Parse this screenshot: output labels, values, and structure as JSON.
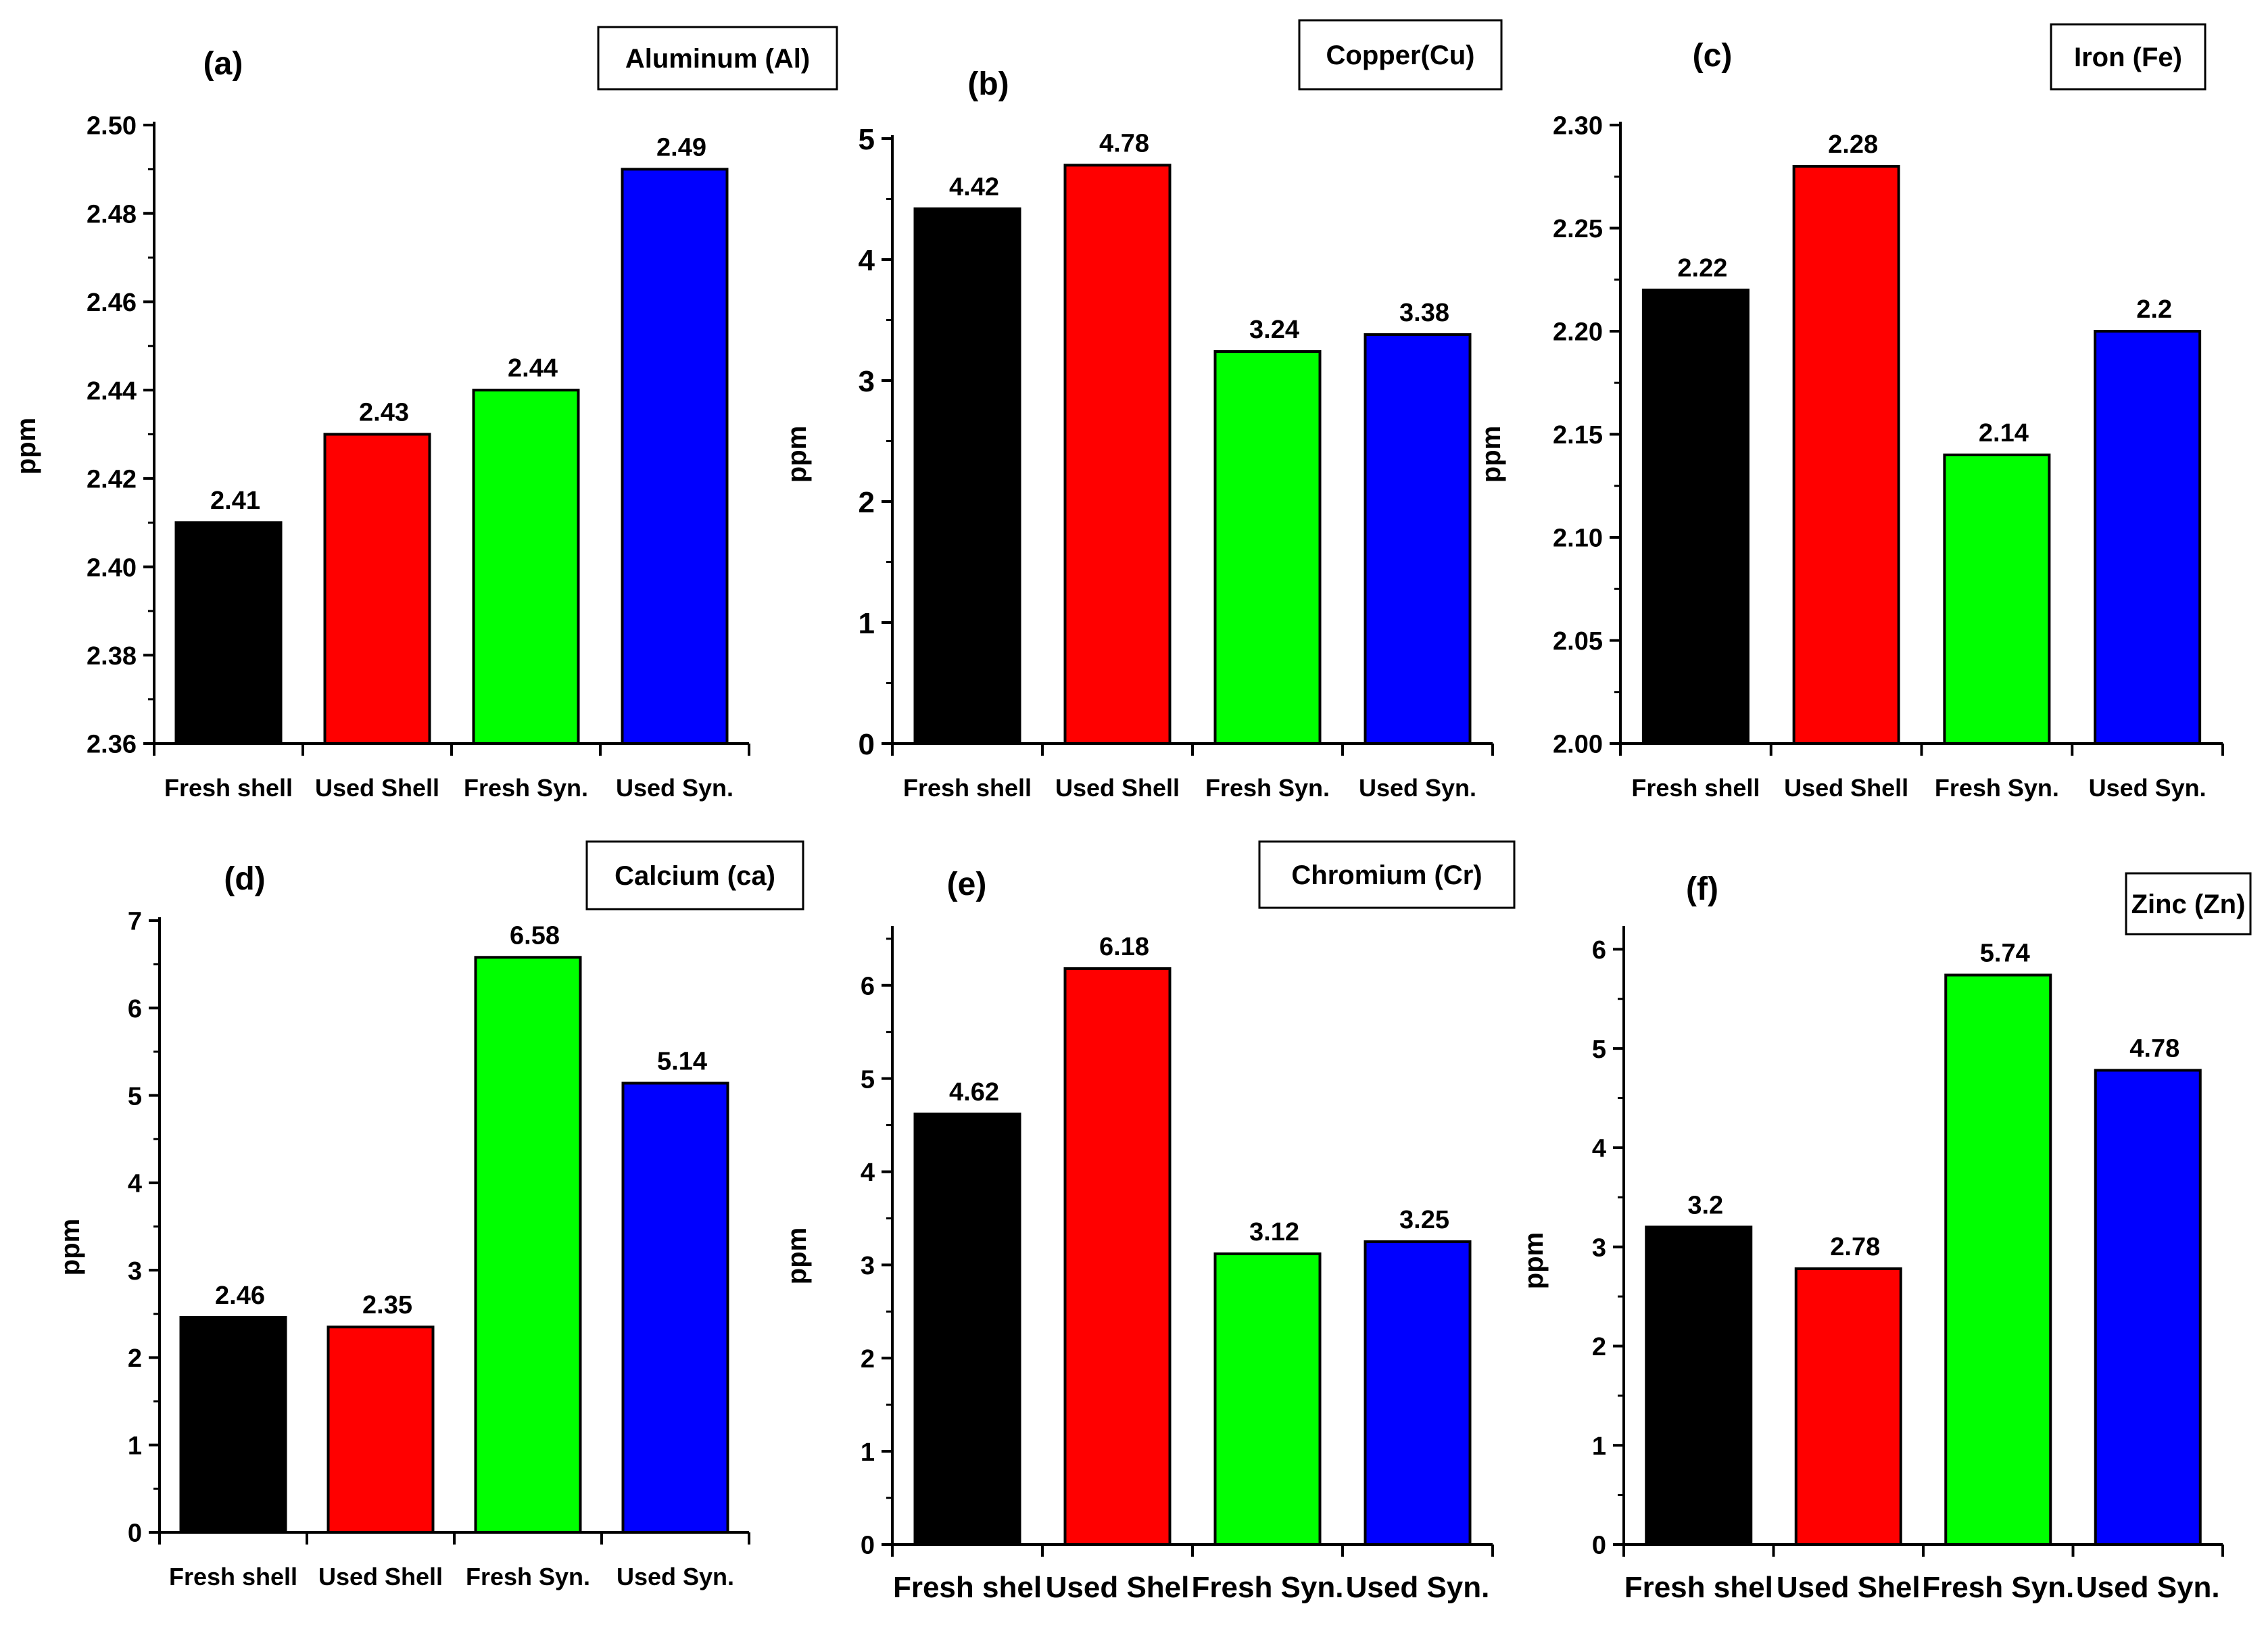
{
  "chart_data": [
    {
      "type": "bar",
      "panel": "(a)",
      "title": "Aluminum (Al)",
      "categories": [
        "Fresh shell",
        "Used Shell",
        "Fresh Syn.",
        "Used Syn."
      ],
      "values": [
        2.41,
        2.43,
        2.44,
        2.49
      ],
      "value_labels": [
        "2.41",
        "2.43",
        "2.44",
        "2.49"
      ],
      "colors": [
        "#000000",
        "#ff0000",
        "#00ff00",
        "#0000ff"
      ],
      "ylabel": "ppm",
      "xlabel": "",
      "ylim": [
        2.36,
        2.5
      ],
      "yticks": [
        2.36,
        2.38,
        2.4,
        2.42,
        2.44,
        2.46,
        2.48,
        2.5
      ],
      "ytick_labels": [
        "2.36",
        "2.38",
        "2.40",
        "2.42",
        "2.44",
        "2.46",
        "2.48",
        "2.50"
      ]
    },
    {
      "type": "bar",
      "panel": "(b)",
      "title": "Copper(Cu)",
      "categories": [
        "Fresh shell",
        "Used Shell",
        "Fresh Syn.",
        "Used Syn."
      ],
      "values": [
        4.42,
        4.78,
        3.24,
        3.38
      ],
      "value_labels": [
        "4.42",
        "4.78",
        "3.24",
        "3.38"
      ],
      "colors": [
        "#000000",
        "#ff0000",
        "#00ff00",
        "#0000ff"
      ],
      "ylabel": "ppm",
      "xlabel": "",
      "ylim": [
        0,
        5
      ],
      "yticks": [
        0,
        1,
        2,
        3,
        4,
        5
      ],
      "ytick_labels": [
        "0",
        "1",
        "2",
        "3",
        "4",
        "5"
      ]
    },
    {
      "type": "bar",
      "panel": "(c)",
      "title": "Iron (Fe)",
      "categories": [
        "Fresh shell",
        "Used Shell",
        "Fresh Syn.",
        "Used Syn."
      ],
      "values": [
        2.22,
        2.28,
        2.14,
        2.2
      ],
      "value_labels": [
        "2.22",
        "2.28",
        "2.14",
        "2.2"
      ],
      "colors": [
        "#000000",
        "#ff0000",
        "#00ff00",
        "#0000ff"
      ],
      "ylabel": "ppm",
      "xlabel": "",
      "ylim": [
        2.0,
        2.3
      ],
      "yticks": [
        2.0,
        2.05,
        2.1,
        2.15,
        2.2,
        2.25,
        2.3
      ],
      "ytick_labels": [
        "2.00",
        "2.05",
        "2.10",
        "2.15",
        "2.20",
        "2.25",
        "2.30"
      ]
    },
    {
      "type": "bar",
      "panel": "(d)",
      "title": "Calcium (ca)",
      "categories": [
        "Fresh shell",
        "Used Shell",
        "Fresh Syn.",
        "Used Syn."
      ],
      "values": [
        2.46,
        2.35,
        6.58,
        5.14
      ],
      "value_labels": [
        "2.46",
        "2.35",
        "6.58",
        "5.14"
      ],
      "colors": [
        "#000000",
        "#ff0000",
        "#00ff00",
        "#0000ff"
      ],
      "ylabel": "ppm",
      "xlabel": "",
      "ylim": [
        0,
        7
      ],
      "yticks": [
        0,
        1,
        2,
        3,
        4,
        5,
        6,
        7
      ],
      "ytick_labels": [
        "0",
        "1",
        "2",
        "3",
        "4",
        "5",
        "6",
        "7"
      ]
    },
    {
      "type": "bar",
      "panel": "(e)",
      "title": "Chromium (Cr)",
      "categories": [
        "Fresh shel",
        "Used Shel",
        "Fresh Syn.",
        "Used Syn."
      ],
      "values": [
        4.62,
        6.18,
        3.12,
        3.25
      ],
      "value_labels": [
        "4.62",
        "6.18",
        "3.12",
        "3.25"
      ],
      "colors": [
        "#000000",
        "#ff0000",
        "#00ff00",
        "#0000ff"
      ],
      "ylabel": "ppm",
      "xlabel": "",
      "ylim": [
        0,
        6.6
      ],
      "yticks": [
        0,
        1,
        2,
        3,
        4,
        5,
        6
      ],
      "ytick_labels": [
        "0",
        "1",
        "2",
        "3",
        "4",
        "5",
        "6"
      ]
    },
    {
      "type": "bar",
      "panel": "(f)",
      "title": "Zinc (Zn)",
      "categories": [
        "Fresh shel",
        "Used Shel",
        "Fresh Syn.",
        "Used Syn."
      ],
      "values": [
        3.2,
        2.78,
        5.74,
        4.78
      ],
      "value_labels": [
        "3.2",
        "2.78",
        "5.74",
        "4.78"
      ],
      "colors": [
        "#000000",
        "#ff0000",
        "#00ff00",
        "#0000ff"
      ],
      "ylabel": "ppm",
      "xlabel": "",
      "ylim": [
        0,
        6.2
      ],
      "yticks": [
        0,
        1,
        2,
        3,
        4,
        5,
        6
      ],
      "ytick_labels": [
        "0",
        "1",
        "2",
        "3",
        "4",
        "5",
        "6"
      ]
    }
  ]
}
